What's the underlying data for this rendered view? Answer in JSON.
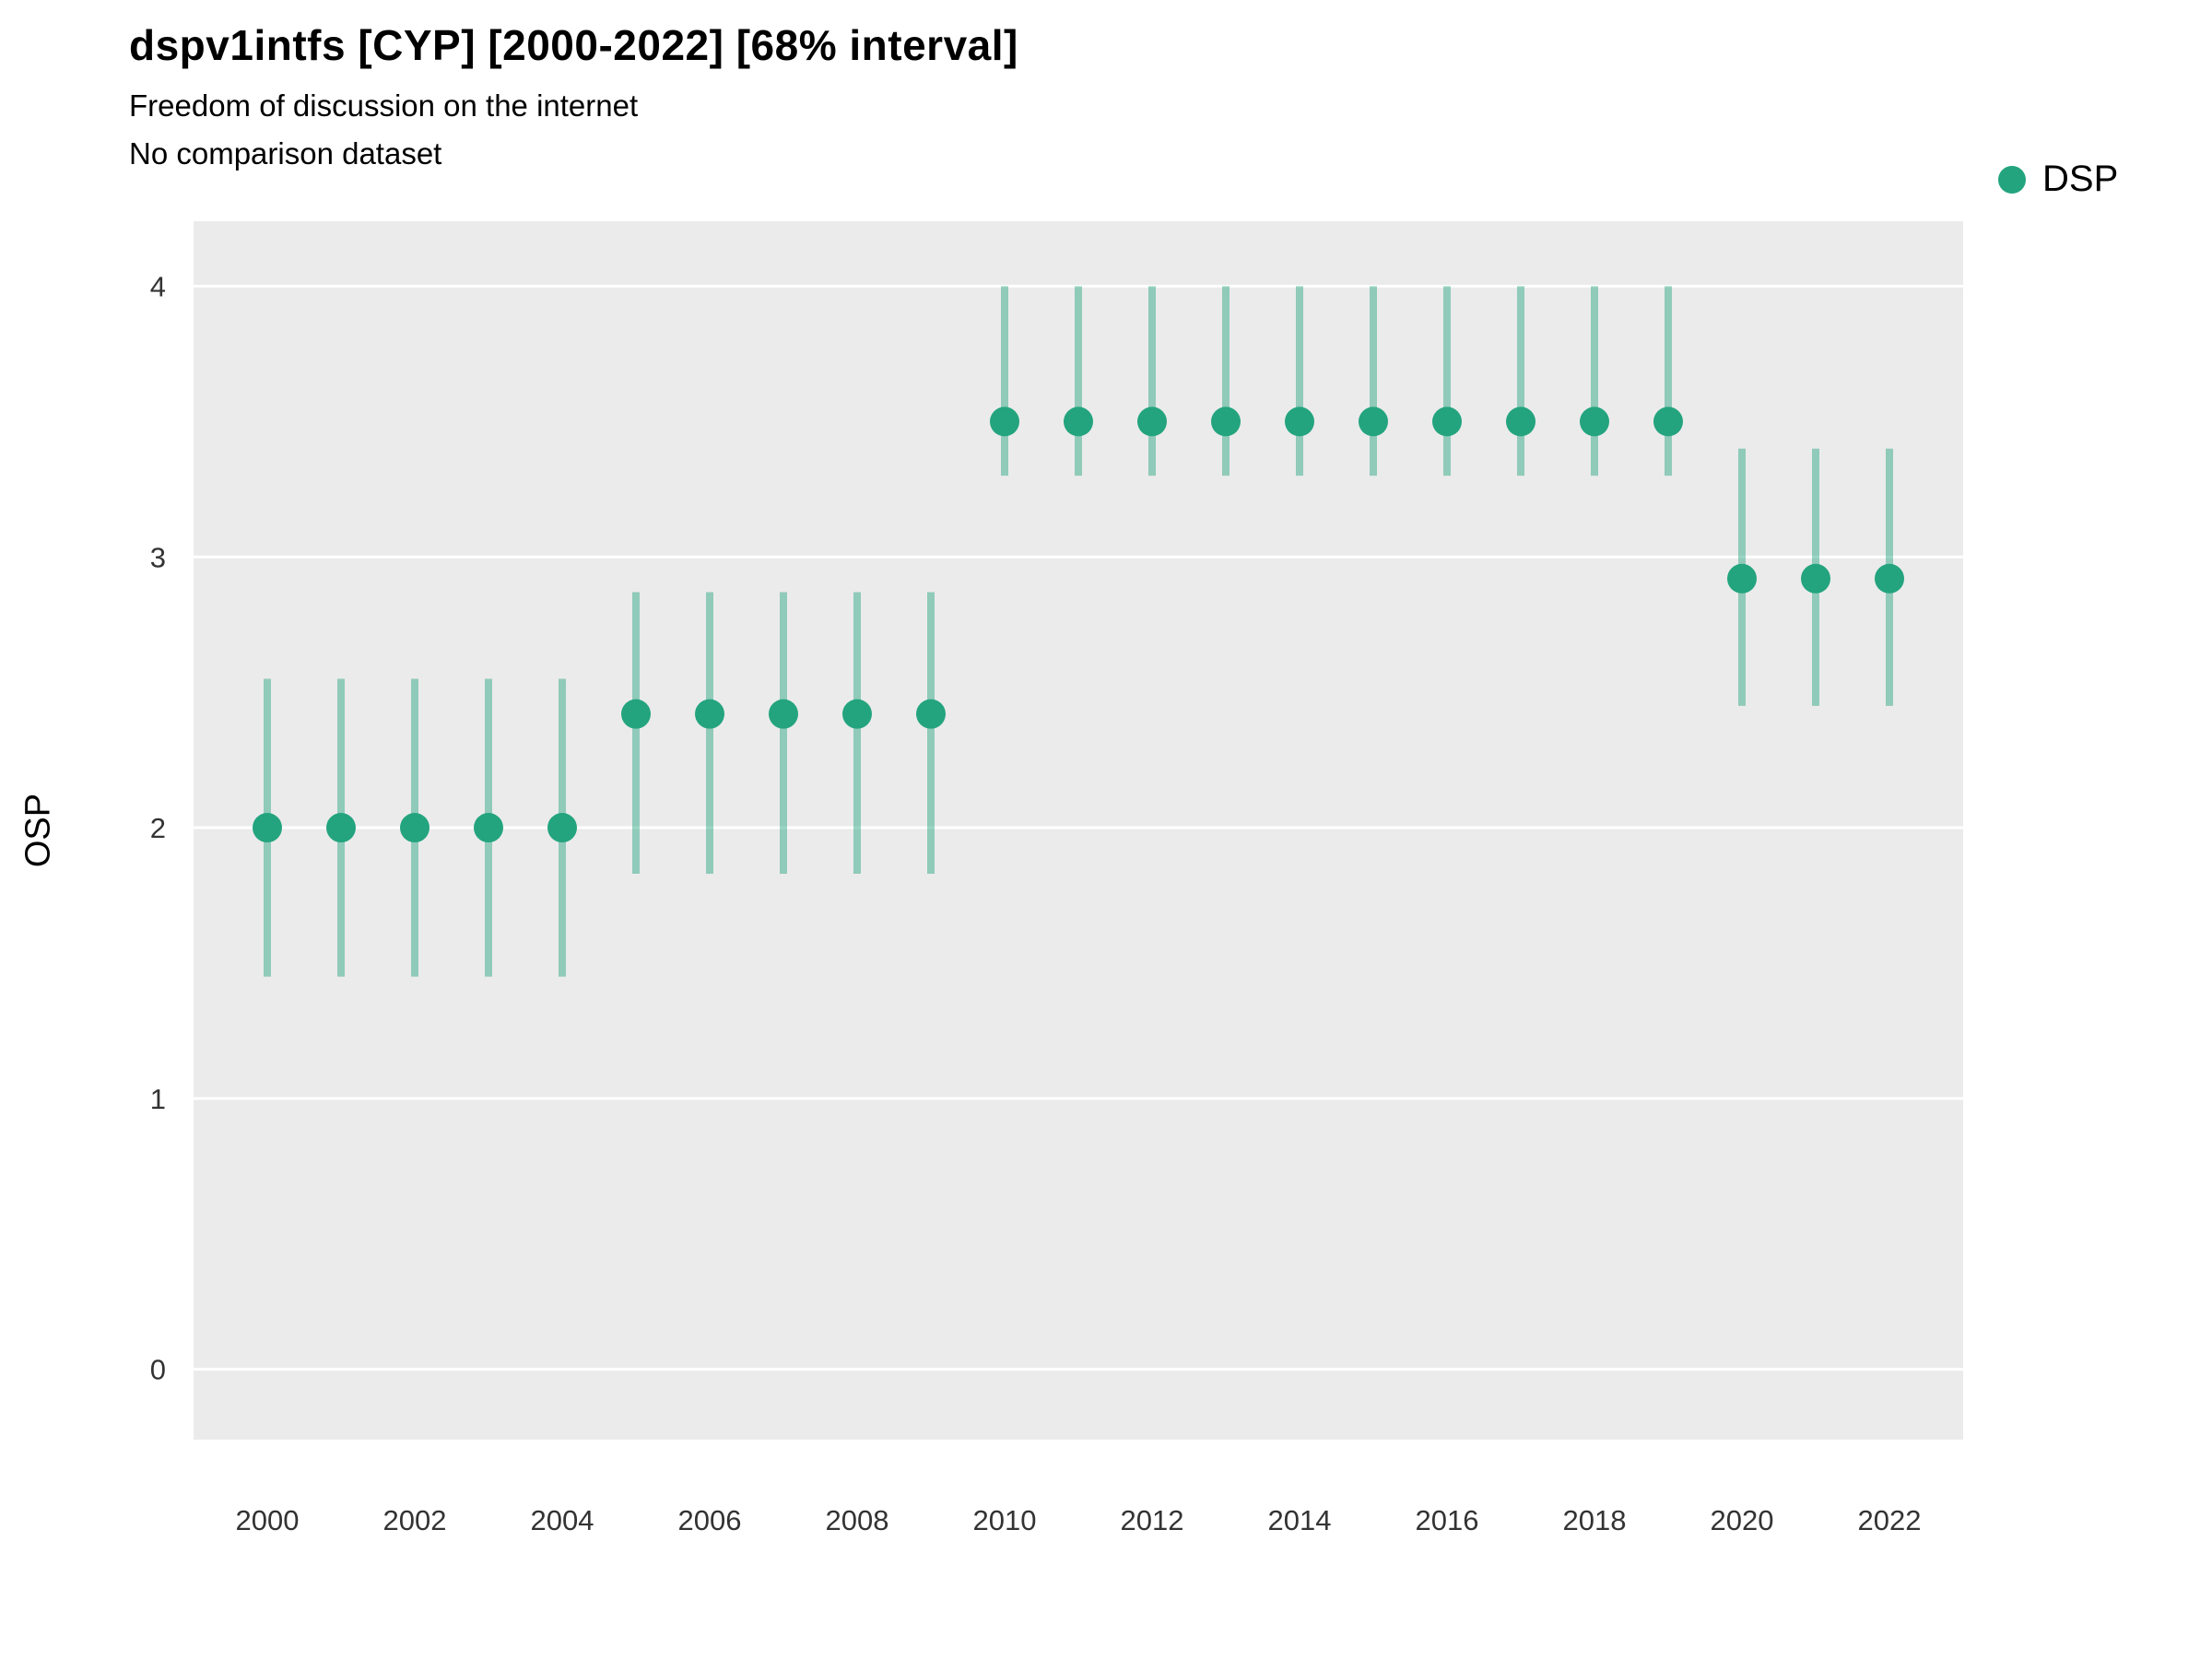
{
  "header": {
    "title": "dspv1intfs [CYP] [2000-2022] [68% interval]",
    "subtitle1": "Freedom of discussion on the internet",
    "subtitle2": "No comparison dataset"
  },
  "legend": {
    "items": [
      {
        "label": "DSP",
        "color": "#23a47e"
      }
    ]
  },
  "chart_data": {
    "type": "scatter",
    "title": "dspv1intfs [CYP] [2000-2022] [68% interval]",
    "subtitle": "Freedom of discussion on the internet",
    "note": "No comparison dataset",
    "xlabel": "",
    "ylabel": "OSP",
    "grid": true,
    "legend_position": "top-right",
    "panel_bg": "#ebebeb",
    "grid_color": "#ffffff",
    "point_color": "#23a47e",
    "interval_color": "#23a47e",
    "interval_opacity": 0.45,
    "ylim": [
      -0.26,
      4.24
    ],
    "yticks": [
      0,
      1,
      2,
      3,
      4
    ],
    "xlim": [
      1999,
      2023
    ],
    "xticks": [
      2000,
      2002,
      2004,
      2006,
      2008,
      2010,
      2012,
      2014,
      2016,
      2018,
      2020,
      2022
    ],
    "x": [
      2000,
      2001,
      2002,
      2003,
      2004,
      2005,
      2006,
      2007,
      2008,
      2009,
      2010,
      2011,
      2012,
      2013,
      2014,
      2015,
      2016,
      2017,
      2018,
      2019,
      2020,
      2021,
      2022
    ],
    "series": [
      {
        "name": "DSP",
        "values": [
          2.0,
          2.0,
          2.0,
          2.0,
          2.0,
          2.42,
          2.42,
          2.42,
          2.42,
          2.42,
          3.5,
          3.5,
          3.5,
          3.5,
          3.5,
          3.5,
          3.5,
          3.5,
          3.5,
          3.5,
          2.92,
          2.92,
          2.92
        ],
        "lower": [
          1.45,
          1.45,
          1.45,
          1.45,
          1.45,
          1.83,
          1.83,
          1.83,
          1.83,
          1.83,
          3.3,
          3.3,
          3.3,
          3.3,
          3.3,
          3.3,
          3.3,
          3.3,
          3.3,
          3.3,
          2.45,
          2.45,
          2.45
        ],
        "upper": [
          2.55,
          2.55,
          2.55,
          2.55,
          2.55,
          2.87,
          2.87,
          2.87,
          2.87,
          2.87,
          4.0,
          4.0,
          4.0,
          4.0,
          4.0,
          4.0,
          4.0,
          4.0,
          4.0,
          4.0,
          3.4,
          3.4,
          3.4
        ]
      }
    ]
  }
}
